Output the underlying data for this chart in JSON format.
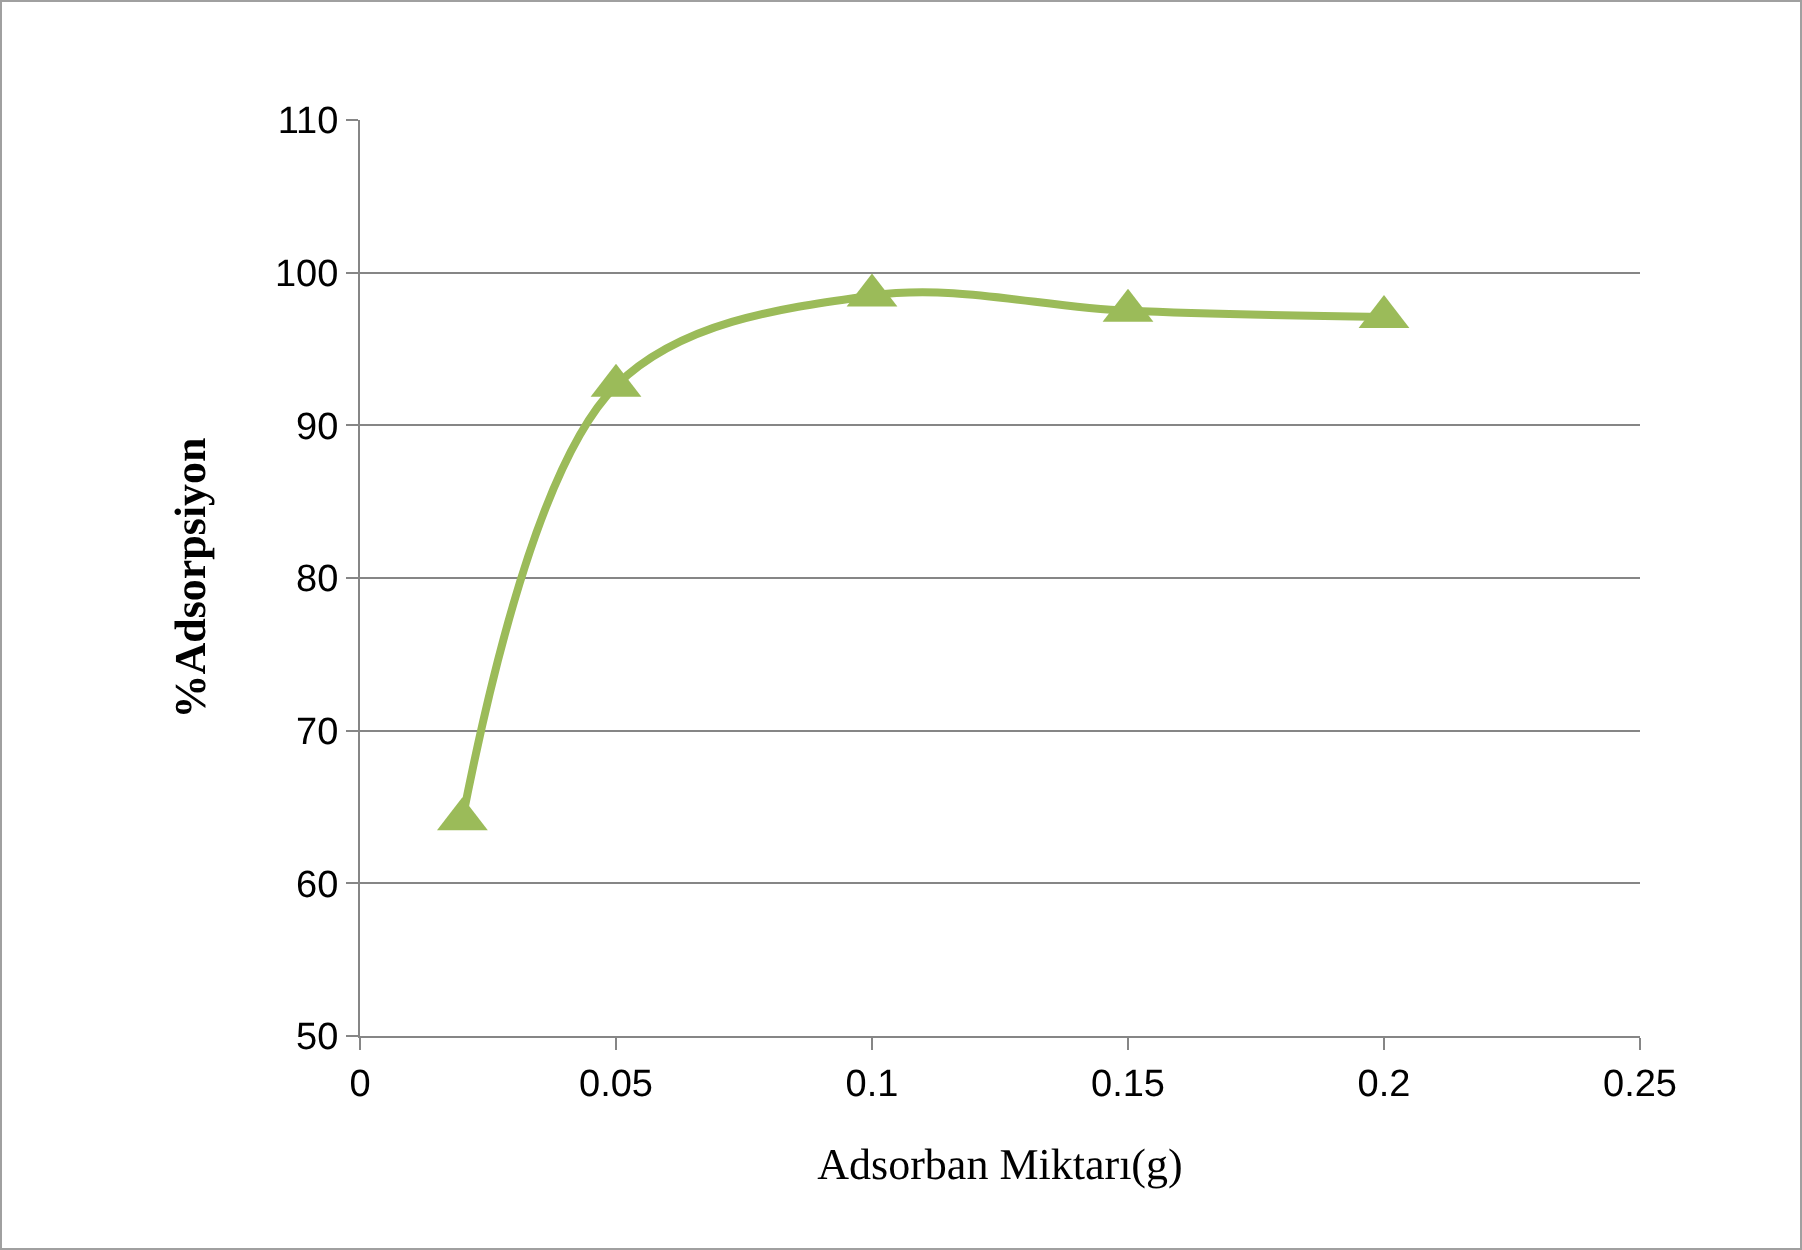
{
  "chart_data": {
    "type": "line",
    "xlabel": "Adsorban Miktarı(g)",
    "ylabel": "%Adsorpsiyon",
    "x": [
      0.02,
      0.05,
      0.1,
      0.15,
      0.2
    ],
    "series": [
      {
        "color": "#9bbb59",
        "values": [
          64.2,
          92.6,
          98.5,
          97.5,
          97.1
        ]
      }
    ],
    "xlim": [
      0,
      0.25
    ],
    "xticks": [
      0,
      0.05,
      0.1,
      0.15,
      0.2,
      0.25
    ],
    "ylim": [
      50,
      110
    ],
    "yticks": [
      50,
      60,
      70,
      80,
      90,
      100,
      110
    ],
    "grid": "y",
    "legend": false,
    "marker": "triangle",
    "line_style": "solid"
  }
}
